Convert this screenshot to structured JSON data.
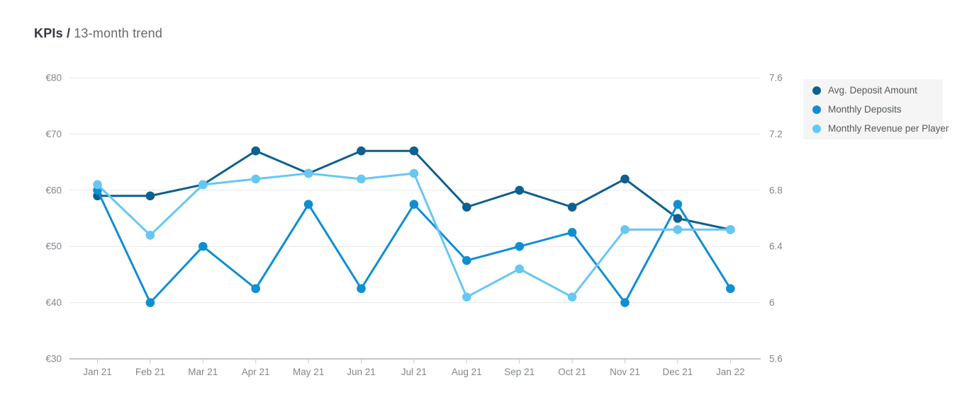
{
  "title": {
    "primary": "KPIs /",
    "secondary": "13-month trend"
  },
  "chart_data": {
    "type": "line",
    "title": "KPIs / 13-month trend",
    "categories": [
      "Jan 21",
      "Feb 21",
      "Mar 21",
      "Apr 21",
      "May 21",
      "Jun 21",
      "Jul 21",
      "Aug 21",
      "Sep 21",
      "Oct 21",
      "Nov 21",
      "Dec 21",
      "Jan 22"
    ],
    "axes": {
      "left": {
        "tick_labels": [
          "€80",
          "€70",
          "€60",
          "€50",
          "€40",
          "€30"
        ],
        "tick_values": [
          80,
          70,
          60,
          50,
          40,
          30
        ],
        "min": 30,
        "max": 80,
        "unit": "€"
      },
      "right": {
        "tick_labels": [
          "7.6",
          "7.2",
          "6.8",
          "6.4",
          "6",
          "5.6"
        ],
        "tick_values": [
          7.6,
          7.2,
          6.8,
          6.4,
          6,
          5.6
        ],
        "min": 5.6,
        "max": 7.6
      }
    },
    "grid": true,
    "legend_position": "right",
    "series": [
      {
        "name": "Avg. Deposit Amount",
        "axis": "left",
        "color": "#0d6090",
        "values": [
          59,
          59,
          61,
          67,
          63,
          67,
          67,
          57,
          60,
          57,
          62,
          55,
          53
        ]
      },
      {
        "name": "Monthly Deposits",
        "axis": "right",
        "color": "#0f8ed4",
        "values": [
          6.8,
          6.0,
          6.4,
          6.1,
          6.7,
          6.1,
          6.7,
          6.3,
          6.4,
          6.5,
          6.0,
          6.7,
          6.1
        ]
      },
      {
        "name": "Monthly Revenue per Player",
        "axis": "left",
        "color": "#67c7f3",
        "values": [
          61,
          52,
          61,
          62,
          63,
          62,
          63,
          41,
          46,
          41,
          53,
          53,
          53
        ]
      }
    ]
  },
  "colors": {
    "grid_line": "#e7e7e7",
    "axis_line": "#c2c6ca",
    "axis_text": "#82878d",
    "legend_background": "#f5f5f5",
    "legend_text": "#54595e",
    "background": "#ffffff"
  }
}
